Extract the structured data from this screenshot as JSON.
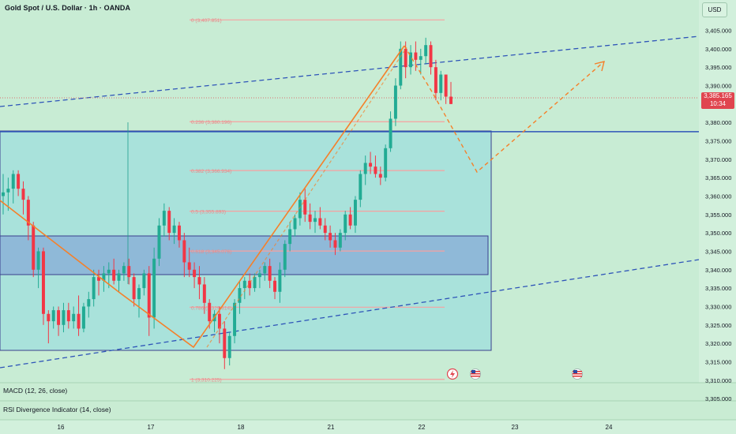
{
  "header": {
    "title": "Gold Spot / U.S. Dollar · 1h · OANDA",
    "currency": "USD"
  },
  "price_axis": {
    "ticks": [
      "3,405.000",
      "3,400.000",
      "3,395.000",
      "3,390.000",
      "3,380.000",
      "3,375.000",
      "3,370.000",
      "3,365.000",
      "3,360.000",
      "3,355.000",
      "3,350.000",
      "3,345.000",
      "3,340.000",
      "3,335.000",
      "3,330.000",
      "3,325.000",
      "3,320.000",
      "3,315.000",
      "3,310.000",
      "3,305.000"
    ],
    "last_price": "3,385.165",
    "countdown": "10:34"
  },
  "time_axis": {
    "ticks": [
      "16",
      "17",
      "18",
      "21",
      "22",
      "23",
      "24"
    ]
  },
  "fib_labels": [
    "0 (3,407.851)",
    "0.236 (3,380.196)",
    "0.382 (3,366.934)",
    "0.5 (3,355.893)",
    "0.618 (3,345.076)",
    "0.786 (3,329.814)",
    "1 (3,310.225)"
  ],
  "indicators": {
    "macd": "MACD (12, 26, close)",
    "rsi": "RSI Divergence Indicator (14, close)"
  },
  "colors": {
    "up": "#22ab94",
    "down": "#f23645",
    "trend": "#2e54b8",
    "projection": "#f5802a",
    "fib": "#f7a0a0"
  },
  "chart_data": {
    "type": "candlestick",
    "symbol": "Gold Spot / U.S. Dollar",
    "timeframe": "1h",
    "ylim": [
      3302,
      3410
    ],
    "last_price": 3385.165,
    "ohlc": [
      [
        3360,
        3366,
        3355,
        3361
      ],
      [
        3361,
        3365,
        3356,
        3362
      ],
      [
        3362,
        3367,
        3358,
        3366
      ],
      [
        3366,
        3367,
        3360,
        3362
      ],
      [
        3362,
        3364,
        3355,
        3359
      ],
      [
        3359,
        3360,
        3348,
        3352
      ],
      [
        3352,
        3353,
        3338,
        3340
      ],
      [
        3340,
        3346,
        3335,
        3345
      ],
      [
        3345,
        3346,
        3325,
        3328
      ],
      [
        3328,
        3329,
        3320,
        3326
      ],
      [
        3326,
        3330,
        3324,
        3329
      ],
      [
        3329,
        3330,
        3322,
        3325
      ],
      [
        3325,
        3331,
        3323,
        3329
      ],
      [
        3329,
        3331,
        3324,
        3326
      ],
      [
        3326,
        3330,
        3324,
        3328
      ],
      [
        3328,
        3333,
        3322,
        3324
      ],
      [
        3324,
        3331,
        3323,
        3330
      ],
      [
        3330,
        3334,
        3327,
        3332
      ],
      [
        3332,
        3340,
        3330,
        3338
      ],
      [
        3338,
        3340,
        3333,
        3337
      ],
      [
        3337,
        3341,
        3334,
        3339
      ],
      [
        3339,
        3342,
        3335,
        3340
      ],
      [
        3340,
        3343,
        3336,
        3337
      ],
      [
        3337,
        3340,
        3334,
        3339
      ],
      [
        3339,
        3342,
        3337,
        3341
      ],
      [
        3341,
        3343,
        3336,
        3338
      ],
      [
        3338,
        3339,
        3330,
        3332
      ],
      [
        3332,
        3336,
        3327,
        3335
      ],
      [
        3335,
        3340,
        3333,
        3339
      ],
      [
        3339,
        3341,
        3322,
        3327
      ],
      [
        3327,
        3346,
        3324,
        3343
      ],
      [
        3343,
        3354,
        3341,
        3352
      ],
      [
        3352,
        3358,
        3349,
        3356
      ],
      [
        3356,
        3357,
        3348,
        3350
      ],
      [
        3350,
        3354,
        3347,
        3352
      ],
      [
        3352,
        3353,
        3346,
        3348
      ],
      [
        3348,
        3350,
        3338,
        3342
      ],
      [
        3342,
        3346,
        3338,
        3340
      ],
      [
        3340,
        3342,
        3335,
        3338
      ],
      [
        3338,
        3341,
        3332,
        3336
      ],
      [
        3336,
        3338,
        3328,
        3331
      ],
      [
        3331,
        3332,
        3324,
        3326
      ],
      [
        3326,
        3329,
        3323,
        3328
      ],
      [
        3328,
        3330,
        3320,
        3324
      ],
      [
        3324,
        3326,
        3313,
        3316
      ],
      [
        3316,
        3323,
        3314,
        3322
      ],
      [
        3322,
        3332,
        3320,
        3331
      ],
      [
        3331,
        3337,
        3328,
        3335
      ],
      [
        3335,
        3338,
        3332,
        3337
      ],
      [
        3337,
        3339,
        3333,
        3335
      ],
      [
        3335,
        3339,
        3334,
        3338
      ],
      [
        3338,
        3340,
        3335,
        3339
      ],
      [
        3339,
        3342,
        3337,
        3341
      ],
      [
        3341,
        3343,
        3335,
        3337
      ],
      [
        3337,
        3338,
        3332,
        3334
      ],
      [
        3334,
        3342,
        3331,
        3340
      ],
      [
        3340,
        3348,
        3338,
        3347
      ],
      [
        3347,
        3353,
        3345,
        3351
      ],
      [
        3351,
        3355,
        3349,
        3354
      ],
      [
        3354,
        3361,
        3352,
        3359
      ],
      [
        3359,
        3362,
        3353,
        3355
      ],
      [
        3355,
        3358,
        3351,
        3353
      ],
      [
        3353,
        3356,
        3350,
        3354
      ],
      [
        3354,
        3357,
        3351,
        3352
      ],
      [
        3352,
        3354,
        3348,
        3350
      ],
      [
        3350,
        3352,
        3346,
        3348
      ],
      [
        3348,
        3350,
        3344,
        3346
      ],
      [
        3346,
        3351,
        3345,
        3350
      ],
      [
        3350,
        3356,
        3348,
        3355
      ],
      [
        3355,
        3357,
        3351,
        3352
      ],
      [
        3352,
        3360,
        3350,
        3359
      ],
      [
        3359,
        3367,
        3357,
        3366
      ],
      [
        3366,
        3371,
        3363,
        3369
      ],
      [
        3369,
        3372,
        3366,
        3368
      ],
      [
        3368,
        3371,
        3365,
        3366
      ],
      [
        3366,
        3368,
        3363,
        3365
      ],
      [
        3365,
        3374,
        3364,
        3373
      ],
      [
        3373,
        3383,
        3372,
        3381
      ],
      [
        3381,
        3392,
        3379,
        3390
      ],
      [
        3390,
        3402,
        3389,
        3400
      ],
      [
        3400,
        3402,
        3392,
        3395
      ],
      [
        3395,
        3401,
        3393,
        3399
      ],
      [
        3399,
        3402,
        3394,
        3397
      ],
      [
        3397,
        3400,
        3393,
        3398
      ],
      [
        3398,
        3403,
        3396,
        3401
      ],
      [
        3401,
        3402,
        3393,
        3395
      ],
      [
        3395,
        3397,
        3386,
        3388
      ],
      [
        3388,
        3394,
        3386,
        3393
      ],
      [
        3393,
        3393,
        3385,
        3387
      ],
      [
        3387,
        3391,
        3385,
        3385
      ]
    ],
    "levels": [
      {
        "label": "0",
        "value": 3407.851
      },
      {
        "label": "0.236",
        "value": 3380.196
      },
      {
        "label": "0.382",
        "value": 3366.934
      },
      {
        "label": "0.5",
        "value": 3355.893
      },
      {
        "label": "0.618",
        "value": 3345.076
      },
      {
        "label": "0.786",
        "value": 3329.814
      },
      {
        "label": "1",
        "value": 3310.225
      }
    ],
    "horizontal_line": 3377.5,
    "x_ticks": [
      "16",
      "17",
      "18",
      "21",
      "22",
      "23",
      "24"
    ]
  }
}
